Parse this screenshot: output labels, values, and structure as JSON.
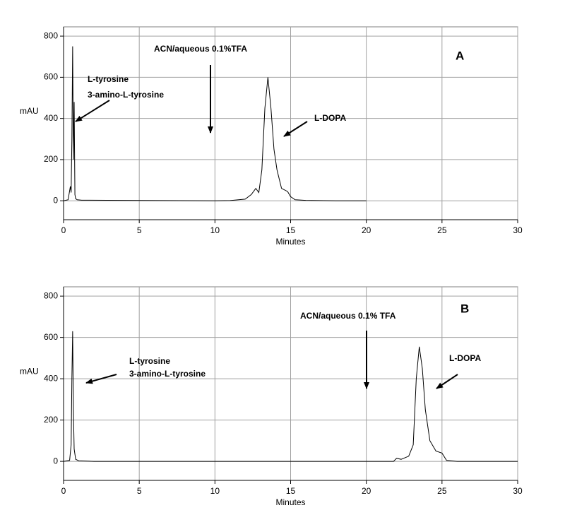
{
  "chart_data": [
    {
      "type": "line",
      "panel_label": "A",
      "xlabel": "Minutes",
      "ylabel": "mAU",
      "xlim": [
        0,
        30
      ],
      "ylim": [
        -92,
        845
      ],
      "xticks": [
        0,
        5,
        10,
        15,
        20,
        25,
        30
      ],
      "yticks": [
        0,
        200,
        400,
        600,
        800
      ],
      "grid": true,
      "annotations": [
        "ACN/aqueous 0.1%TFA",
        "L-tyrosine",
        "3-amino-L-tyrosine",
        "L-DOPA"
      ],
      "x": [
        0,
        0.3,
        0.45,
        0.5,
        0.55,
        0.6,
        0.65,
        0.7,
        0.75,
        0.8,
        0.9,
        1.2,
        4,
        10,
        11,
        12,
        12.4,
        12.7,
        12.9,
        13.1,
        13.3,
        13.5,
        13.7,
        13.9,
        14.1,
        14.4,
        14.8,
        15.0,
        15.3,
        16,
        18,
        20
      ],
      "series": [
        {
          "color": "#000000",
          "values": [
            0,
            5,
            70,
            40,
            300,
            750,
            200,
            480,
            30,
            10,
            5,
            3,
            2,
            0,
            1,
            8,
            30,
            60,
            40,
            150,
            450,
            600,
            450,
            250,
            150,
            60,
            45,
            20,
            5,
            2,
            0,
            0
          ]
        }
      ]
    },
    {
      "type": "line",
      "panel_label": "B",
      "xlabel": "Minutes",
      "ylabel": "mAU",
      "xlim": [
        0,
        30
      ],
      "ylim": [
        -92,
        845
      ],
      "xticks": [
        0,
        5,
        10,
        15,
        20,
        25,
        30
      ],
      "yticks": [
        0,
        200,
        400,
        600,
        800
      ],
      "grid": true,
      "annotations": [
        "ACN/aqueous 0.1% TFA",
        "L-tyrosine",
        "3-amino-L-tyrosine",
        "L-DOPA"
      ],
      "x": [
        0,
        0.4,
        0.5,
        0.55,
        0.6,
        0.65,
        0.7,
        0.8,
        1,
        2,
        10,
        21.8,
        22,
        22.3,
        22.8,
        23.1,
        23.3,
        23.5,
        23.7,
        23.9,
        24.2,
        24.6,
        25,
        25.3,
        26,
        30
      ],
      "series": [
        {
          "color": "#000000",
          "values": [
            0,
            5,
            80,
            400,
            630,
            250,
            60,
            10,
            3,
            0,
            0,
            0,
            15,
            10,
            25,
            80,
            400,
            555,
            450,
            250,
            100,
            50,
            40,
            5,
            0,
            0
          ]
        }
      ]
    }
  ]
}
